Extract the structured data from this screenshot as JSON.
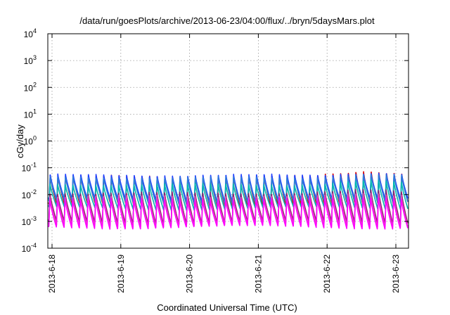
{
  "chart_data": {
    "type": "line",
    "title": "/data/run/goesPlots/archive/2013-06-23/04:00/flux/../bryn/5daysMars.plot",
    "xlabel": "Coordinated Universal Time (UTC)",
    "ylabel": "cGy/day",
    "y_scale": "log",
    "ylim": [
      0.0001,
      10000
    ],
    "xlim_days": [
      "2013-6-18",
      "2013-6-23 04:00"
    ],
    "x_ticks": [
      "2013-6-18",
      "2013-6-19",
      "2013-6-20",
      "2013-6-21",
      "2013-6-22",
      "2013-6-23"
    ],
    "y_ticks": [
      {
        "base": "10",
        "exp": "-4",
        "value": 0.0001
      },
      {
        "base": "10",
        "exp": "-3",
        "value": 0.001
      },
      {
        "base": "10",
        "exp": "-2",
        "value": 0.01
      },
      {
        "base": "10",
        "exp": "-1",
        "value": 0.1
      },
      {
        "base": "10",
        "exp": "0",
        "value": 1
      },
      {
        "base": "10",
        "exp": "1",
        "value": 10
      },
      {
        "base": "10",
        "exp": "2",
        "value": 100
      },
      {
        "base": "10",
        "exp": "3",
        "value": 1000
      },
      {
        "base": "10",
        "exp": "4",
        "value": 10000
      }
    ],
    "grid": true,
    "cycles_per_day": 9.0,
    "series": [
      {
        "color": "#d40000",
        "peak": 0.05,
        "trough": 0.004,
        "late_peak": 0.085
      },
      {
        "color": "#1f3fff",
        "peak": 0.055,
        "trough": 0.006,
        "late_peak": 0.07
      },
      {
        "color": "#2f7fd8",
        "peak": 0.045,
        "trough": 0.005,
        "late_peak": 0.06
      },
      {
        "color": "#00b8b0",
        "peak": 0.025,
        "trough": 0.003,
        "late_peak": 0.035
      },
      {
        "color": "#8b1f6f",
        "peak": 0.012,
        "trough": 0.0009,
        "late_peak": 0.016
      },
      {
        "color": "#e64fbf",
        "peak": 0.009,
        "trough": 0.0007,
        "late_peak": 0.012
      },
      {
        "color": "#ff00ff",
        "peak": 0.007,
        "trough": 0.0006,
        "late_peak": 0.009
      }
    ]
  }
}
